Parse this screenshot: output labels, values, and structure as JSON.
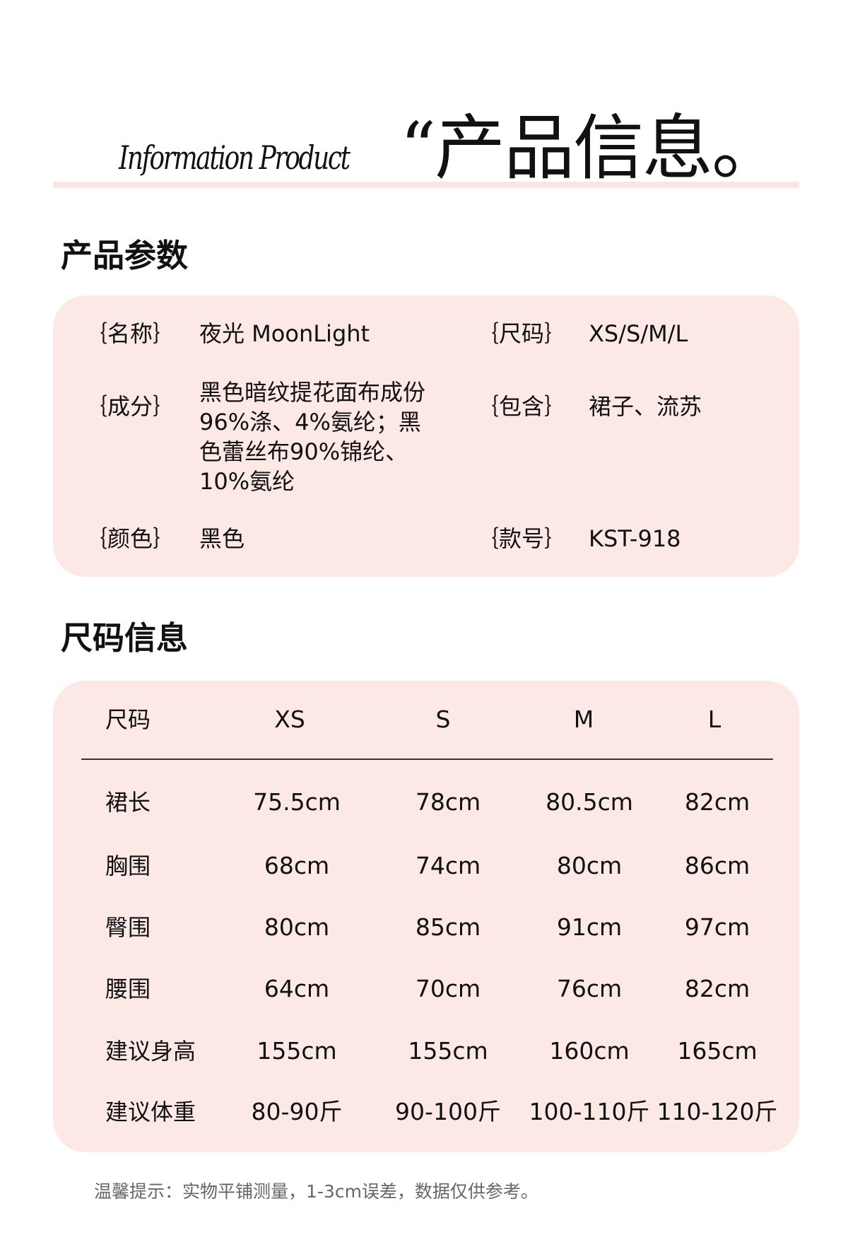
{
  "header": {
    "script_title": "Information Product",
    "title": "“产品信息。",
    "accent_color": "#fbe4e1"
  },
  "params": {
    "heading": "产品参数",
    "panel_color": "#fce8e5",
    "left": [
      {
        "label": "｛名称｝",
        "value": "夜光 MoonLight"
      },
      {
        "label": "｛成分｝",
        "value": "黑色暗纹提花面布成份96%涤、4%氨纶；黑色蕾丝布90%锦纶、10%氨纶"
      },
      {
        "label": "｛颜色｝",
        "value": "黑色"
      }
    ],
    "right": [
      {
        "label": "｛尺码｝",
        "value": "XS/S/M/L"
      },
      {
        "label": "｛包含｝",
        "value": "裙子、流苏"
      },
      {
        "label": "｛款号｝",
        "value": "KST-918"
      }
    ]
  },
  "size": {
    "heading": "尺码信息",
    "columns": [
      "尺码",
      "XS",
      "S",
      "M",
      "L"
    ],
    "rows": [
      {
        "label": "裙长",
        "values": [
          "75.5cm",
          "78cm",
          "80.5cm",
          "82cm"
        ]
      },
      {
        "label": "胸围",
        "values": [
          "68cm",
          "74cm",
          "80cm",
          "86cm"
        ]
      },
      {
        "label": "臀围",
        "values": [
          "80cm",
          "85cm",
          "91cm",
          "97cm"
        ]
      },
      {
        "label": "腰围",
        "values": [
          "64cm",
          "70cm",
          "76cm",
          "82cm"
        ]
      },
      {
        "label": "建议身高",
        "values": [
          "155cm",
          "155cm",
          "160cm",
          "165cm"
        ]
      },
      {
        "label": "建议体重",
        "values": [
          "80-90斤",
          "90-100斤",
          "100-110斤",
          "110-120斤"
        ]
      }
    ]
  },
  "footnote": "温馨提示：实物平铺测量，1-3cm误差，数据仅供参考。"
}
